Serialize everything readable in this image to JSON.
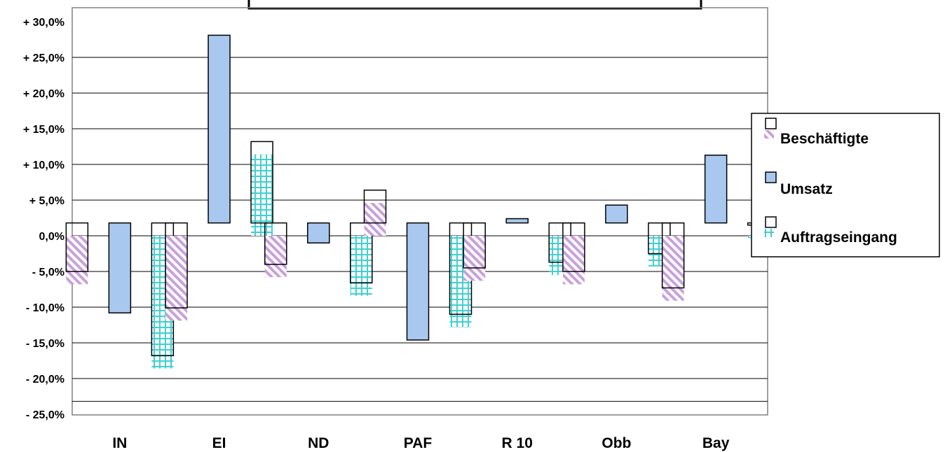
{
  "chart_data": {
    "type": "bar",
    "title": "",
    "xlabel": "",
    "ylabel": "",
    "categories": [
      "IN",
      "EI",
      "ND",
      "PAF",
      "R 10",
      "Obb",
      "Bay"
    ],
    "ylim": [
      -25,
      30
    ],
    "yticks": [
      30,
      25,
      20,
      15,
      10,
      5,
      0,
      -5,
      -10,
      -15,
      -20,
      -25
    ],
    "ytick_labels": [
      "+ 30,0%",
      "+ 25,0%",
      "+ 20,0%",
      "+ 15,0%",
      "+ 10,0%",
      "+ 5,0%",
      "0,0%",
      "- 5,0%",
      "- 10,0%",
      "- 15,0%",
      "- 20,0%",
      "- 25,0%"
    ],
    "grid": true,
    "legend_position": "right",
    "series": [
      {
        "name": "Beschäftigte",
        "values": [
          -6.8,
          -11.9,
          -5.8,
          4.6,
          -6.3,
          -6.8,
          -9.1
        ],
        "pattern": "diagonal-hatch",
        "color": "#c9a0dc"
      },
      {
        "name": "Umsatz",
        "values": [
          -10.8,
          28.1,
          -1.0,
          -14.6,
          2.4,
          4.3,
          11.3
        ],
        "pattern": "solid",
        "color": "#a9c8ef"
      },
      {
        "name": "Auftragseingang",
        "values": [
          -18.6,
          11.4,
          -8.4,
          -12.8,
          -5.5,
          -4.3,
          -0.3
        ],
        "pattern": "grid",
        "color": "#40d0d0"
      }
    ]
  }
}
